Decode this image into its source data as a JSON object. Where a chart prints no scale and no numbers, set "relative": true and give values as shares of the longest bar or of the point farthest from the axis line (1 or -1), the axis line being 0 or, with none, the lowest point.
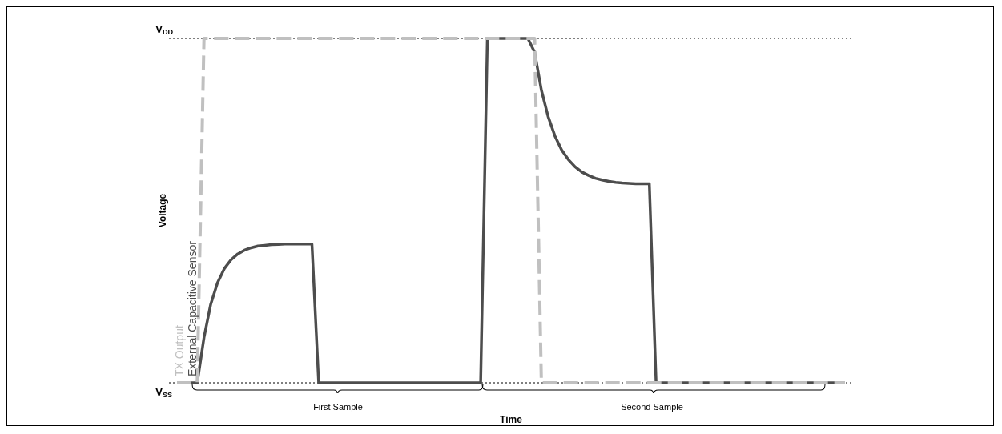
{
  "chart_data": {
    "type": "line",
    "relative": true,
    "xlabel": "Time",
    "ylabel": "Voltage",
    "tick_labels": false,
    "marker": "none",
    "categories": [
      null,
      null,
      null,
      null,
      null,
      null,
      null,
      null,
      null,
      null,
      null,
      null,
      null,
      null,
      null,
      null,
      null,
      null,
      null,
      null,
      null,
      null,
      null,
      null,
      null,
      null,
      null,
      null,
      null,
      null,
      null,
      null,
      null,
      null,
      null,
      null,
      null,
      null,
      null,
      null,
      null,
      null,
      null,
      null,
      null,
      null,
      null,
      null,
      null,
      null,
      null,
      null,
      null,
      null,
      null,
      null,
      null,
      null,
      null,
      null,
      null,
      null,
      null,
      null,
      null,
      null,
      null,
      null,
      null,
      null,
      null,
      null,
      null,
      null,
      null,
      null,
      null,
      null,
      null,
      null,
      null,
      null,
      null,
      null,
      null,
      null,
      null,
      null,
      null,
      null,
      null,
      null,
      null,
      null,
      null,
      null,
      null,
      null,
      null,
      null
    ],
    "series": [
      {
        "name": "TX Output",
        "color": "#c0c0c0",
        "line_style": "dashed",
        "values": [
          0,
          0,
          0,
          0,
          1,
          1,
          1,
          1,
          1,
          1,
          1,
          1,
          1,
          1,
          1,
          1,
          1,
          1,
          1,
          1,
          1,
          1,
          1,
          1,
          1,
          1,
          1,
          1,
          1,
          1,
          1,
          1,
          1,
          1,
          1,
          1,
          1,
          1,
          1,
          1,
          1,
          1,
          1,
          1,
          1,
          1,
          1,
          1,
          1,
          1,
          1,
          1,
          1,
          1,
          0,
          0,
          0,
          0,
          0,
          0,
          0,
          0,
          0,
          0,
          0,
          0,
          0,
          0,
          0,
          0,
          0,
          0,
          0,
          0,
          0,
          0,
          0,
          0,
          0,
          0,
          0,
          0,
          0,
          0,
          0,
          0,
          0,
          0,
          0,
          0,
          0,
          0,
          0,
          0,
          0,
          0,
          0,
          0,
          0,
          0
        ]
      },
      {
        "name": "External Capacitive Sensor",
        "color": "#4d4d4d",
        "line_style": "solid",
        "values": [
          0,
          0,
          0,
          0,
          0.131,
          0.228,
          0.29,
          0.331,
          0.357,
          0.374,
          0.385,
          0.392,
          0.397,
          0.399,
          0.401,
          0.402,
          0.403,
          0.403,
          0.403,
          0.403,
          0.403,
          0,
          0,
          0,
          0,
          0,
          0,
          0,
          0,
          0,
          0,
          0,
          0,
          0,
          0,
          0,
          0,
          0,
          0,
          0,
          0,
          0,
          0,
          0,
          0,
          0,
          1,
          1,
          1,
          1,
          1,
          1,
          1,
          0.96,
          0.85,
          0.773,
          0.717,
          0.676,
          0.648,
          0.627,
          0.612,
          0.602,
          0.594,
          0.589,
          0.585,
          0.582,
          0.58,
          0.579,
          0.578,
          0.578,
          0.578,
          0,
          0,
          0,
          0,
          0,
          0,
          0,
          0,
          0,
          0,
          0,
          0,
          0,
          0,
          0,
          0,
          0,
          0,
          0,
          0,
          0,
          0,
          0,
          0,
          0,
          0,
          0,
          0,
          0
        ]
      }
    ],
    "ref_lines": [
      {
        "axis": "y",
        "value": 1,
        "line_style": "dotted",
        "color": "#000000"
      },
      {
        "axis": "y",
        "value": 0,
        "line_style": "dotted",
        "color": "#000000"
      }
    ],
    "annotations": [
      "V$_{DD}$",
      "V$_{SS}$",
      "First Sample",
      "Second Sample"
    ]
  }
}
